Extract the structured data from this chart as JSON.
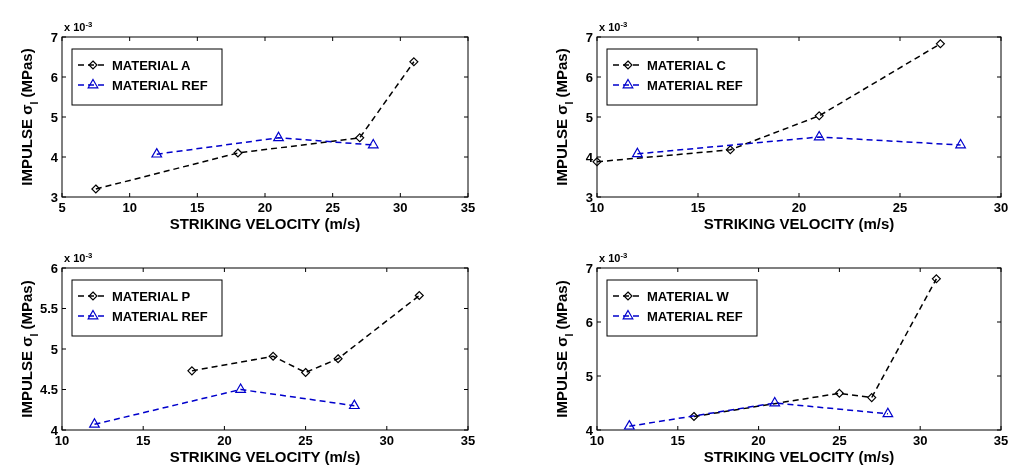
{
  "chart_data": [
    {
      "type": "line",
      "xlabel": "STRIKING VELOCITY (m/s)",
      "ylabel": "IMPULSE σ$_{I}$ (MPas)",
      "annotations": [
        "x 10$^{-3}$"
      ],
      "xlim": [
        5,
        35
      ],
      "xticks": [
        5,
        10,
        15,
        20,
        25,
        30,
        35
      ],
      "ylim": [
        3,
        7
      ],
      "yticks": [
        3,
        4,
        5,
        6,
        7
      ],
      "legend": "top left",
      "line_style": "dashed",
      "grid": false,
      "series": [
        {
          "name": "MATERIAL A",
          "color": "#000000",
          "marker": "diamond",
          "x": [
            7.5,
            18,
            27,
            31
          ],
          "values": [
            3.2,
            4.1,
            4.48,
            6.38
          ]
        },
        {
          "name": "MATERIAL REF",
          "color": "#0000cc",
          "marker": "triangle",
          "x": [
            12,
            21,
            28
          ],
          "values": [
            4.07,
            4.48,
            4.3
          ]
        }
      ]
    },
    {
      "type": "line",
      "xlabel": "STRIKING VELOCITY (m/s)",
      "ylabel": "IMPULSE σ$_{I}$ (MPas)",
      "annotations": [
        "x 10$^{-3}$"
      ],
      "xlim": [
        10,
        30
      ],
      "xticks": [
        10,
        15,
        20,
        25,
        30
      ],
      "ylim": [
        3,
        7
      ],
      "yticks": [
        3,
        4,
        5,
        6,
        7
      ],
      "legend": "top left",
      "line_style": "dashed",
      "grid": false,
      "series": [
        {
          "name": "MATERIAL C",
          "color": "#000000",
          "marker": "diamond",
          "x": [
            10,
            16.6,
            21,
            27
          ],
          "values": [
            3.88,
            4.18,
            5.03,
            6.83
          ]
        },
        {
          "name": "MATERIAL REF",
          "color": "#0000cc",
          "marker": "triangle",
          "x": [
            12,
            21,
            28
          ],
          "values": [
            4.08,
            4.5,
            4.3
          ]
        }
      ]
    },
    {
      "type": "line",
      "xlabel": "STRIKING VELOCITY (m/s)",
      "ylabel": "IMPULSE σ$_{I}$ (MPas)",
      "annotations": [
        "x 10$^{-3}$"
      ],
      "xlim": [
        10,
        35
      ],
      "xticks": [
        10,
        15,
        20,
        25,
        30,
        35
      ],
      "ylim": [
        4,
        6
      ],
      "yticks": [
        4,
        4.5,
        5,
        5.5,
        6
      ],
      "legend": "top left",
      "line_style": "dashed",
      "grid": false,
      "series": [
        {
          "name": "MATERIAL P",
          "color": "#000000",
          "marker": "diamond",
          "x": [
            18,
            23,
            25,
            27,
            32
          ],
          "values": [
            4.73,
            4.91,
            4.71,
            4.88,
            5.66
          ]
        },
        {
          "name": "MATERIAL REF",
          "color": "#0000cc",
          "marker": "triangle",
          "x": [
            12,
            21,
            28
          ],
          "values": [
            4.07,
            4.5,
            4.3
          ]
        }
      ]
    },
    {
      "type": "line",
      "xlabel": "STRIKING VELOCITY (m/s)",
      "ylabel": "IMPULSE σ$_{I}$ (MPas)",
      "annotations": [
        "x 10$^{-3}$"
      ],
      "xlim": [
        10,
        35
      ],
      "xticks": [
        10,
        15,
        20,
        25,
        30,
        35
      ],
      "ylim": [
        4,
        7
      ],
      "yticks": [
        4,
        5,
        6,
        7
      ],
      "legend": "top left",
      "line_style": "dashed",
      "grid": false,
      "series": [
        {
          "name": "MATERIAL W",
          "color": "#000000",
          "marker": "diamond",
          "x": [
            16,
            25,
            27,
            31
          ],
          "values": [
            4.25,
            4.68,
            4.6,
            6.8
          ]
        },
        {
          "name": "MATERIAL REF",
          "color": "#0000cc",
          "marker": "triangle",
          "x": [
            12,
            21,
            28
          ],
          "values": [
            4.07,
            4.5,
            4.3
          ]
        }
      ]
    }
  ]
}
